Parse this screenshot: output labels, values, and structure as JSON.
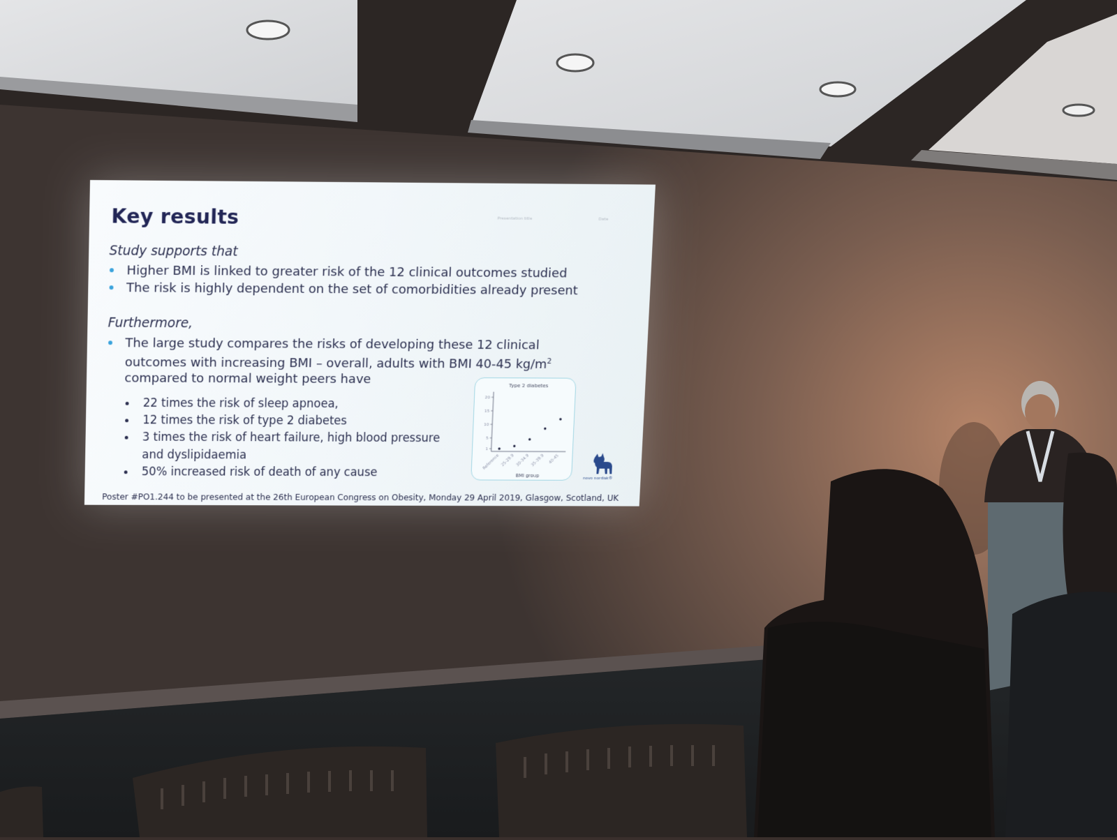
{
  "slide": {
    "title": "Key results",
    "header": {
      "left": "Presentation title",
      "right": "Date"
    },
    "section1": {
      "lead": "Study supports that",
      "bullets": [
        "Higher BMI is linked to greater risk of the 12 clinical outcomes studied",
        "The risk is highly dependent on the set of comorbidities already present"
      ]
    },
    "section2": {
      "lead": "Furthermore,",
      "bullet_lines": [
        "The large study compares the risks of developing these 12 clinical",
        "outcomes with increasing BMI – overall, adults with BMI 40-45 kg/m",
        "compared to normal weight peers have"
      ],
      "superscript": "2",
      "subbullets": [
        "22 times the risk of sleep apnoea,",
        "12 times the risk of type 2 diabetes",
        "3 times the risk of heart failure, high blood pressure",
        "and dyslipidaemia",
        "50% increased risk of death of any cause"
      ]
    },
    "footnote": "Poster #PO1.244 to be presented at the 26th European Congress on Obesity, Monday 29 April 2019, Glasgow, Scotland, UK",
    "logo_text": "novo nordisk®",
    "colors": {
      "accent": "#3aa3dc",
      "title": "#222656",
      "chart_border": "#9fd5e3"
    }
  },
  "chart_data": {
    "type": "scatter",
    "title": "Type 2 diabetes",
    "xlabel": "BMI group",
    "ylabel": "",
    "categories": [
      "Reference",
      "25-29.9",
      "30-34.9",
      "35-39.9",
      "40-45"
    ],
    "values": [
      1,
      2,
      4.5,
      8.5,
      12
    ],
    "ylim": [
      0,
      22
    ],
    "yticks": [
      1,
      5,
      10,
      15,
      20
    ],
    "grid": false
  }
}
